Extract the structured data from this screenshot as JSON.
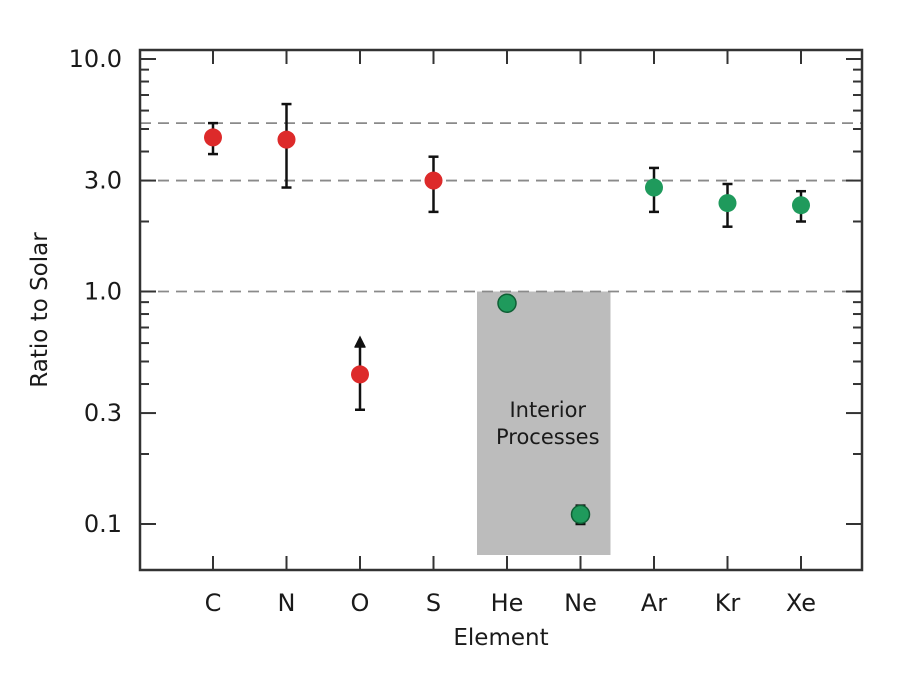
{
  "chart_data": {
    "type": "scatter",
    "title": "",
    "xlabel": "Element",
    "ylabel": "Ratio to Solar",
    "y_scale": "log",
    "ylim": [
      0.08,
      11.0
    ],
    "categories": [
      "C",
      "N",
      "O",
      "S",
      "He",
      "Ne",
      "Ar",
      "Kr",
      "Xe"
    ],
    "y_ticks": [
      {
        "value": 10.0,
        "label": "10.0"
      },
      {
        "value": 3.0,
        "label": "3.0"
      },
      {
        "value": 1.0,
        "label": "1.0"
      },
      {
        "value": 0.3,
        "label": "0.3"
      },
      {
        "value": 0.1,
        "label": "0.1"
      }
    ],
    "reference_lines": [
      5.3,
      3.0,
      1.0
    ],
    "points": [
      {
        "element": "C",
        "value": 4.6,
        "err_low": 3.9,
        "err_high": 5.3,
        "color": "#dd2a2a",
        "lower_limit": false
      },
      {
        "element": "N",
        "value": 4.5,
        "err_low": 2.8,
        "err_high": 6.4,
        "color": "#dd2a2a",
        "lower_limit": false
      },
      {
        "element": "O",
        "value": 0.44,
        "err_low": 0.31,
        "err_high": 0.58,
        "color": "#dd2a2a",
        "lower_limit": true
      },
      {
        "element": "S",
        "value": 3.0,
        "err_low": 2.2,
        "err_high": 3.8,
        "color": "#dd2a2a",
        "lower_limit": false
      },
      {
        "element": "He",
        "value": 0.89,
        "err_low": 0.87,
        "err_high": 0.91,
        "color": "#1f9a5c",
        "lower_limit": false
      },
      {
        "element": "Ne",
        "value": 0.11,
        "err_low": 0.1,
        "err_high": 0.12,
        "color": "#1f9a5c",
        "lower_limit": false
      },
      {
        "element": "Ar",
        "value": 2.8,
        "err_low": 2.2,
        "err_high": 3.4,
        "color": "#1f9a5c",
        "lower_limit": false
      },
      {
        "element": "Kr",
        "value": 2.4,
        "err_low": 1.9,
        "err_high": 2.9,
        "color": "#1f9a5c",
        "lower_limit": false
      },
      {
        "element": "Xe",
        "value": 2.35,
        "err_low": 2.0,
        "err_high": 2.7,
        "color": "#1f9a5c",
        "lower_limit": false
      }
    ],
    "shaded_region": {
      "label_line1": "Interior",
      "label_line2": "Processes",
      "categories": [
        "He",
        "Ne"
      ],
      "y_top": 1.0,
      "color": "#bcbcbc"
    },
    "grid": false,
    "legend": "none"
  }
}
